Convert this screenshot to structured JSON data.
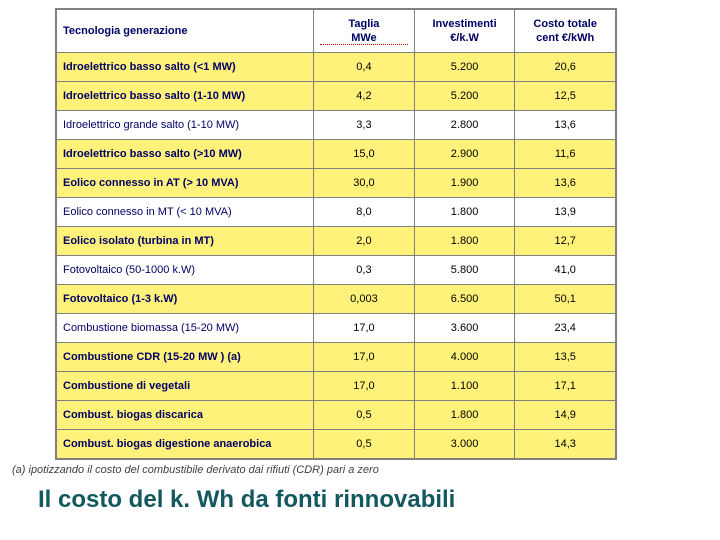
{
  "headers": {
    "tech": "Tecnologia generazione",
    "size": "Taglia",
    "size_unit": "MWe",
    "invest": "Investimenti",
    "invest_unit": "€/k.W",
    "cost": "Costo totale",
    "cost_unit": "cent €/kWh"
  },
  "rows": [
    {
      "hl": true,
      "tech": "Idroelettrico basso salto (<1 MW)",
      "size": "0,4",
      "invest": "5.200",
      "cost": "20,6"
    },
    {
      "hl": true,
      "tech": "Idroelettrico basso salto (1-10 MW)",
      "size": "4,2",
      "invest": "5.200",
      "cost": "12,5"
    },
    {
      "hl": false,
      "tech": "Idroelettrico grande salto (1-10 MW)",
      "size": "3,3",
      "invest": "2.800",
      "cost": "13,6"
    },
    {
      "hl": true,
      "tech": "Idroelettrico basso salto (>10 MW)",
      "size": "15,0",
      "invest": "2.900",
      "cost": "11,6"
    },
    {
      "hl": true,
      "tech": "Eolico connesso in AT (> 10 MVA)",
      "size": "30,0",
      "invest": "1.900",
      "cost": "13,6"
    },
    {
      "hl": false,
      "tech": "Eolico connesso in MT (< 10 MVA)",
      "size": "8,0",
      "invest": "1.800",
      "cost": "13,9"
    },
    {
      "hl": true,
      "tech": "Eolico isolato (turbina in MT)",
      "size": "2,0",
      "invest": "1.800",
      "cost": "12,7"
    },
    {
      "hl": false,
      "tech": "Fotovoltaico (50-1000 k.W)",
      "size": "0,3",
      "invest": "5.800",
      "cost": "41,0"
    },
    {
      "hl": true,
      "tech": "Fotovoltaico (1-3 k.W)",
      "size": "0,003",
      "invest": "6.500",
      "cost": "50,1"
    },
    {
      "hl": false,
      "tech": "Combustione biomassa (15-20 MW)",
      "size": "17,0",
      "invest": "3.600",
      "cost": "23,4"
    },
    {
      "hl": true,
      "tech": "Combustione CDR (15-20 MW ) (a)",
      "size": "17,0",
      "invest": "4.000",
      "cost": "13,5"
    },
    {
      "hl": true,
      "tech": "Combustione di vegetali",
      "size": "17,0",
      "invest": "1.100",
      "cost": "17,1"
    },
    {
      "hl": true,
      "tech": "Combust. biogas discarica",
      "size": "0,5",
      "invest": "1.800",
      "cost": "14,9"
    },
    {
      "hl": true,
      "tech": "Combust. biogas digestione anaerobica",
      "size": "0,5",
      "invest": "3.000",
      "cost": "14,3"
    }
  ],
  "footnote": "(a) ipotizzando il costo del combustibile derivato dai rifiuti (CDR) pari a zero",
  "caption": "Il costo del k. Wh da fonti rinnovabili",
  "colors": {
    "highlight_bg": "#fff27a",
    "header_text": "#000066",
    "border": "#808080",
    "caption": "#14585f"
  }
}
